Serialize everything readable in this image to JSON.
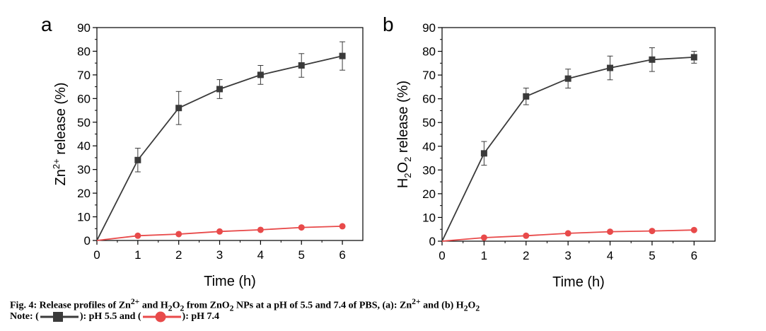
{
  "caption": {
    "line1_prefix": "Fig. 4: Release profiles of Zn",
    "line1_sup1": "2+",
    "line1_mid1": " and H",
    "line1_sub1": "2",
    "line1_mid2": "O",
    "line1_sub2": "2",
    "line1_mid3": " from ZnO",
    "line1_sub3": "2",
    "line1_mid4": " NPs at a pH of 5.5 and 7.4 of PBS, (a): Zn",
    "line1_sup2": "2+",
    "line1_mid5": " and (b) H",
    "line1_sub4": "2",
    "line1_mid6": "O",
    "line1_sub5": "2",
    "line2_note": "Note: (",
    "line2_mid": "): pH 5.5 and (",
    "line2_end": "): pH 7.4"
  },
  "colors": {
    "series_ph55": "#3a3a3a",
    "series_ph74": "#e84a4a"
  },
  "chart_data": [
    {
      "panel_label": "a",
      "type": "line",
      "ylabel_parts": {
        "base": "Zn",
        "sup": "2+",
        "rest": " release (%)"
      },
      "xlabel": "Time (h)",
      "xlim": [
        0,
        6.5
      ],
      "ylim": [
        0,
        90
      ],
      "xticks": [
        0,
        1,
        2,
        3,
        4,
        5,
        6
      ],
      "yticks": [
        0,
        10,
        20,
        30,
        40,
        50,
        60,
        70,
        80,
        90
      ],
      "grid": false,
      "series": [
        {
          "marker": "square",
          "color": "#3a3a3a",
          "x": [
            0,
            1,
            2,
            3,
            4,
            5,
            6
          ],
          "y": [
            0,
            34,
            56,
            64,
            70,
            74,
            78
          ],
          "err": [
            0,
            5,
            7,
            4,
            4,
            5,
            6
          ]
        },
        {
          "marker": "circle",
          "color": "#e84a4a",
          "x": [
            0,
            1,
            2,
            3,
            4,
            5,
            6
          ],
          "y": [
            0,
            2,
            2.7,
            3.8,
            4.5,
            5.5,
            6
          ],
          "err": [
            0,
            0,
            0,
            0,
            0,
            0,
            0
          ]
        }
      ]
    },
    {
      "panel_label": "b",
      "type": "line",
      "ylabel_parts": {
        "base": "H",
        "sub1": "2",
        "mid": "O",
        "sub2": "2",
        "rest": " release (%)"
      },
      "xlabel": "Time (h)",
      "xlim": [
        0,
        6.5
      ],
      "ylim": [
        0,
        90
      ],
      "xticks": [
        0,
        1,
        2,
        3,
        4,
        5,
        6
      ],
      "yticks": [
        0,
        10,
        20,
        30,
        40,
        50,
        60,
        70,
        80,
        90
      ],
      "grid": false,
      "series": [
        {
          "marker": "square",
          "color": "#3a3a3a",
          "x": [
            0,
            1,
            2,
            3,
            4,
            5,
            6
          ],
          "y": [
            0,
            37,
            61,
            68.5,
            73,
            76.5,
            77.5
          ],
          "err": [
            0,
            5,
            3.5,
            4,
            5,
            5,
            2.5
          ]
        },
        {
          "marker": "circle",
          "color": "#e84a4a",
          "x": [
            0,
            1,
            2,
            3,
            4,
            5,
            6
          ],
          "y": [
            0,
            1.5,
            2.3,
            3.3,
            4,
            4.3,
            4.7
          ],
          "err": [
            0,
            0,
            0,
            0,
            0,
            0,
            0
          ]
        }
      ]
    }
  ]
}
